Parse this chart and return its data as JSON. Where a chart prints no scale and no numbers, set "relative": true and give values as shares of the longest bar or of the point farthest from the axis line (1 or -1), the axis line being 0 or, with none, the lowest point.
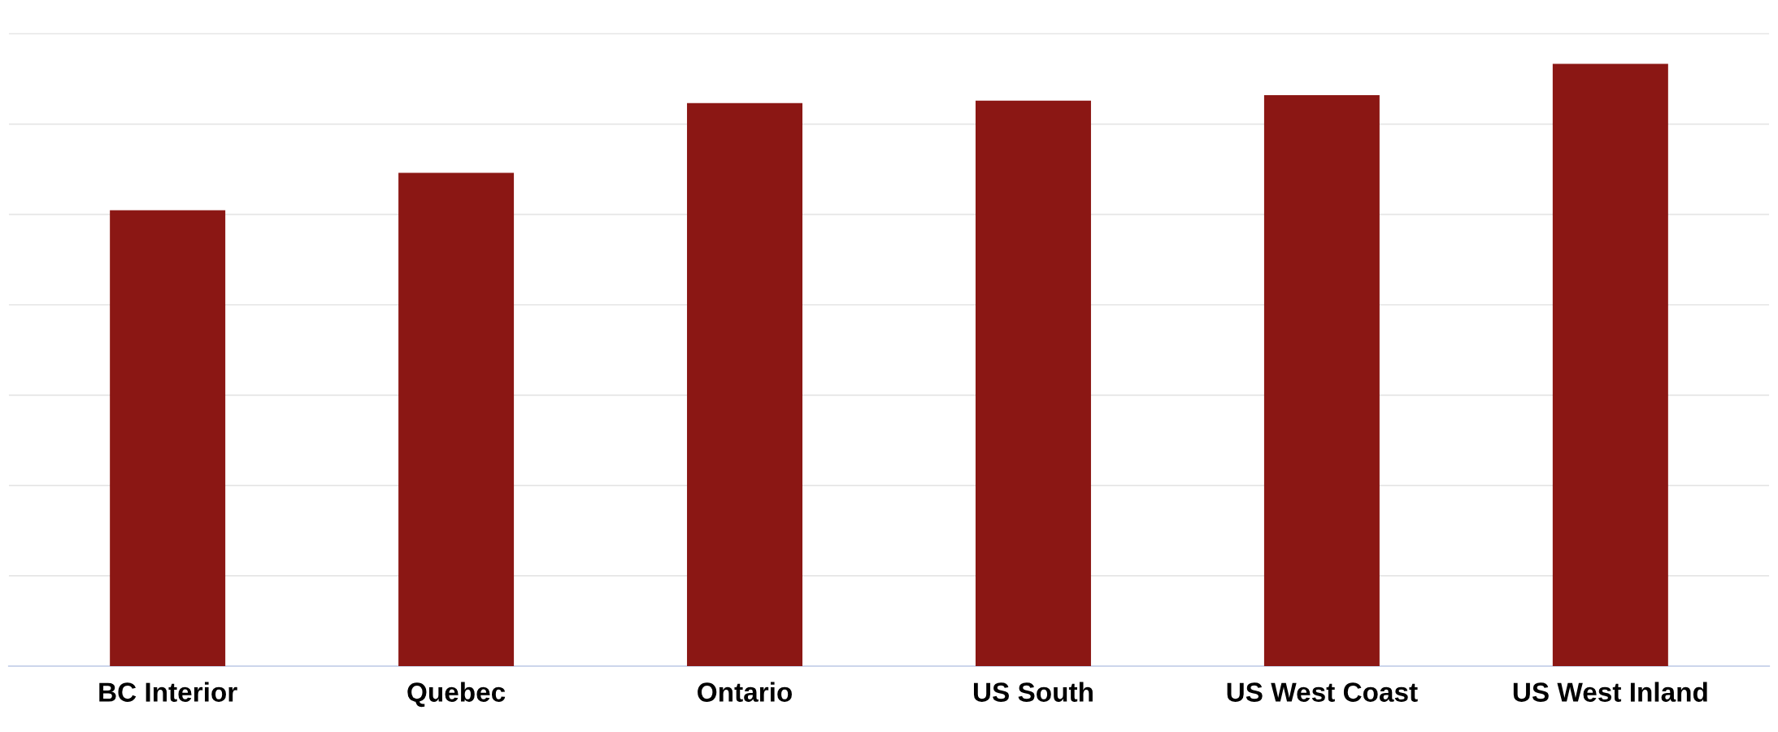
{
  "chart_data": {
    "type": "bar",
    "relative": true,
    "categories": [
      "BC Interior",
      "Quebec",
      "Ontario",
      "US South",
      "US West Coast",
      "US West Inland"
    ],
    "values": [
      0.757,
      0.819,
      0.935,
      0.939,
      0.948,
      1
    ],
    "color": "#8b1714",
    "grid": "y",
    "tick_labels": "x"
  }
}
